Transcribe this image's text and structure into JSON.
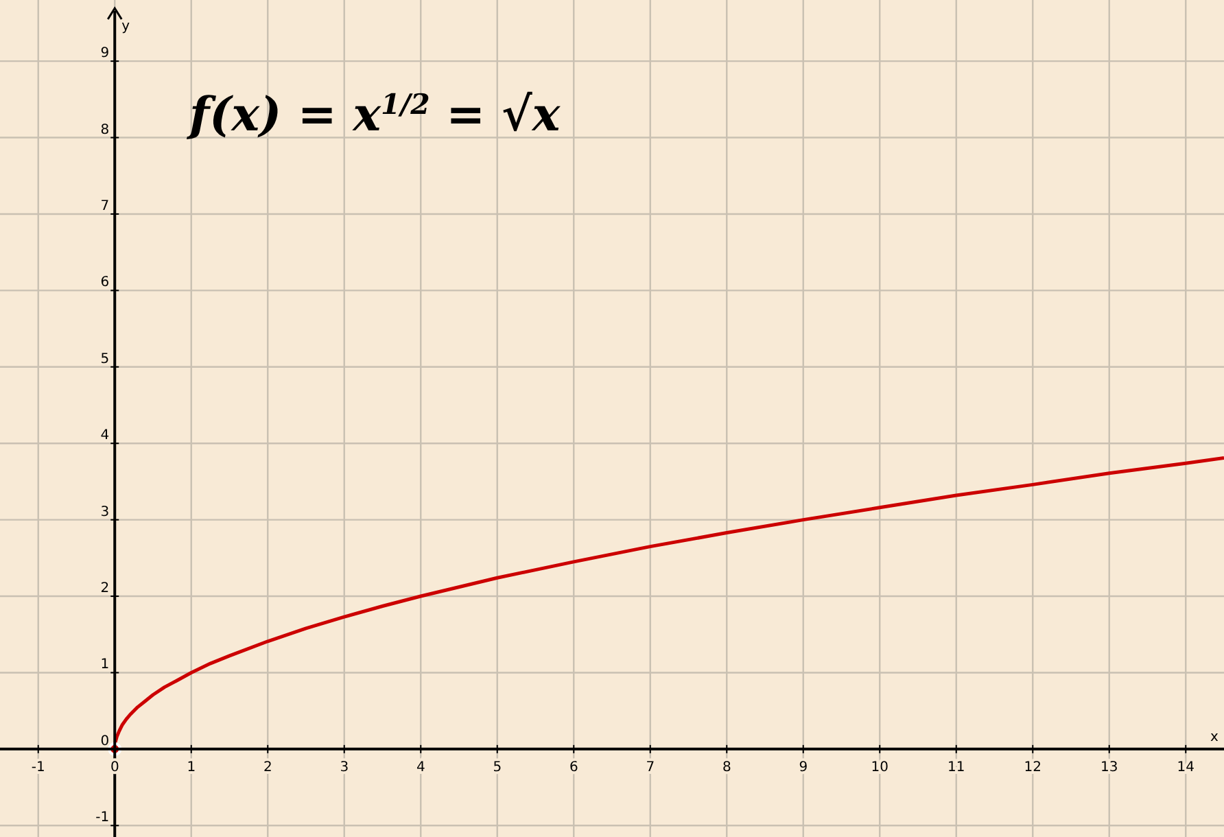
{
  "chart_data": {
    "type": "line",
    "title": "f(x) = x$^{1/2}$ = √x",
    "xlabel": "x",
    "ylabel": "y",
    "xlim": [
      -1.5,
      14.5
    ],
    "ylim": [
      -1.15,
      9.8
    ],
    "xticks": [
      -1,
      0,
      1,
      2,
      3,
      4,
      5,
      6,
      7,
      8,
      9,
      10,
      11,
      12,
      13,
      14
    ],
    "yticks": [
      -1,
      0,
      1,
      2,
      3,
      4,
      5,
      6,
      7,
      8,
      9
    ],
    "grid": true,
    "marker": "none",
    "line_style": "solid",
    "series": [
      {
        "color": "#cc0000",
        "x": [
          0,
          0.01,
          0.03,
          0.06,
          0.1,
          0.15,
          0.2,
          0.3,
          0.4,
          0.5,
          0.65,
          0.8,
          1,
          1.25,
          1.5,
          2,
          2.5,
          3,
          3.5,
          4,
          5,
          6,
          7,
          8,
          9,
          10,
          11,
          12,
          13,
          14,
          14.5
        ],
        "values": [
          0,
          0.1,
          0.17,
          0.24,
          0.32,
          0.39,
          0.45,
          0.55,
          0.63,
          0.71,
          0.81,
          0.89,
          1,
          1.12,
          1.22,
          1.41,
          1.58,
          1.73,
          1.87,
          2,
          2.24,
          2.45,
          2.65,
          2.83,
          3,
          3.16,
          3.32,
          3.46,
          3.61,
          3.74,
          3.81
        ]
      }
    ]
  }
}
